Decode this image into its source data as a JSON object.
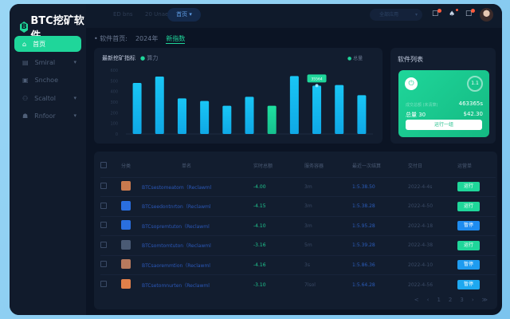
{
  "app": {
    "title": "BTC挖矿软件",
    "logo_letter": "B"
  },
  "sidebar": {
    "items": [
      {
        "label": "首页",
        "icon": "home-icon",
        "active": true
      },
      {
        "label": "Smiral",
        "icon": "server-icon",
        "chevron": true
      },
      {
        "label": "Snchoe",
        "icon": "computer-icon"
      },
      {
        "label": "Scaltol",
        "icon": "users-icon",
        "chevron": true
      },
      {
        "label": "Rnfoor",
        "icon": "person-icon",
        "chevron": true
      }
    ]
  },
  "header": {
    "tabs": [
      "ED bns",
      "20 Unaen"
    ],
    "active_tab": "首页",
    "select": "全部应用",
    "notification_badge": "1"
  },
  "breadcrumb": {
    "items": [
      "软件首页",
      "2024年"
    ],
    "current": "新指数"
  },
  "chart_data": {
    "type": "bar",
    "title": "最新挖矿指标",
    "series_label": "算力",
    "legend": "总量",
    "ylim": [
      0,
      600
    ],
    "yticks": [
      0,
      100,
      200,
      300,
      400,
      500,
      600
    ],
    "grid": false,
    "values": [
      480,
      540,
      335,
      310,
      265,
      350,
      265,
      545,
      455,
      460,
      365
    ],
    "highlight_index": 6,
    "tooltip_index": 8,
    "tooltip": "35564"
  },
  "software": {
    "title": "软件列表",
    "row1_left": "成交总额 (未清算)",
    "row1_right": "463365s",
    "row2_left": "总量 30",
    "row2_right": "$42.30",
    "ring": "1.1",
    "button": "运行一组",
    "colors": {
      "card": "#1fd69a"
    }
  },
  "table": {
    "headers": [
      "分类",
      "单名",
      "实时总额",
      "服务容器",
      "最近一次结算",
      "交付日",
      "运营单"
    ],
    "rows": [
      {
        "icon_color": "#c97a4e",
        "name": "BTCsestomeatom（Reclawml",
        "value": "-4.00",
        "unit": "3m",
        "id": "1:5.38.50",
        "date": "2022-4-4s",
        "action": "运行",
        "action_color": "#1fd69a"
      },
      {
        "icon_color": "#2a6fe0",
        "name": "BTCseedontnrton（Reclawml",
        "value": "-4.15",
        "unit": "3m",
        "id": "1:5.38.28",
        "date": "2022-4-50",
        "action": "运行",
        "action_color": "#1fd69a"
      },
      {
        "icon_color": "#2a6fe0",
        "name": "BTCsopremtuton（Reclawml",
        "value": "-4.10",
        "unit": "3m",
        "id": "1:5.95.28",
        "date": "2022-4-18",
        "action": "暂停",
        "action_color": "#1e8cf0"
      },
      {
        "icon_color": "#4a5a74",
        "name": "BTCsomtomtuton（Reclawml",
        "value": "-3.16",
        "unit": "5m",
        "id": "1:5.39.28",
        "date": "2022-4-38",
        "action": "运行",
        "action_color": "#1fd69a"
      },
      {
        "icon_color": "#b77a5e",
        "name": "BTCsaoremmtion（Reclawml",
        "value": "-4.16",
        "unit": "3s",
        "id": "1:5.86.36",
        "date": "2022-4-10",
        "action": "暂停",
        "action_color": "#1e9cf0"
      },
      {
        "icon_color": "#e0804a",
        "name": "BTCsetomnurten（Reclawml",
        "value": "-3.10",
        "unit": "7lsol",
        "id": "1:5.64.28",
        "date": "2022-4-56",
        "action": "暂停",
        "action_color": "#1ea8f0"
      }
    ],
    "pager": [
      "<",
      "‹",
      "1",
      "2",
      "3",
      "›",
      "≫"
    ]
  }
}
